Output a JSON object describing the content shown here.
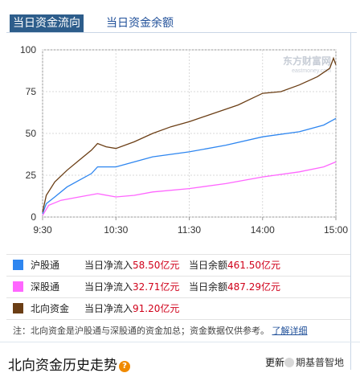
{
  "tabs": [
    {
      "label": "当日资金流向",
      "active": true
    },
    {
      "label": "当日资金余额",
      "active": false
    }
  ],
  "chart_data": {
    "type": "line",
    "ylim": [
      0,
      100
    ],
    "yticks": [
      0,
      25,
      50,
      75,
      100
    ],
    "xticks": [
      "9:30",
      "10:30",
      "11:30",
      "14:00",
      "15:00"
    ],
    "grid": true,
    "watermark_text": "东方财富网",
    "watermark_subtext": "eastmoney.com",
    "series": [
      {
        "name": "北向资金",
        "color": "#6b3e15",
        "values": [
          {
            "t": "9:30",
            "v": 3
          },
          {
            "t": "9:33",
            "v": 13
          },
          {
            "t": "9:40",
            "v": 21
          },
          {
            "t": "9:50",
            "v": 28
          },
          {
            "t": "10:00",
            "v": 34
          },
          {
            "t": "10:10",
            "v": 40
          },
          {
            "t": "10:15",
            "v": 44
          },
          {
            "t": "10:22",
            "v": 42
          },
          {
            "t": "10:30",
            "v": 41
          },
          {
            "t": "10:45",
            "v": 45
          },
          {
            "t": "11:00",
            "v": 50
          },
          {
            "t": "11:15",
            "v": 54
          },
          {
            "t": "11:30",
            "v": 57
          },
          {
            "t": "13:00",
            "v": 57
          },
          {
            "t": "13:20",
            "v": 62
          },
          {
            "t": "13:40",
            "v": 67
          },
          {
            "t": "14:00",
            "v": 74
          },
          {
            "t": "14:15",
            "v": 75
          },
          {
            "t": "14:30",
            "v": 79
          },
          {
            "t": "14:45",
            "v": 84
          },
          {
            "t": "14:55",
            "v": 89
          },
          {
            "t": "14:58",
            "v": 95
          },
          {
            "t": "15:00",
            "v": 91
          }
        ]
      },
      {
        "name": "沪股通",
        "color": "#2e86f0",
        "values": [
          {
            "t": "9:30",
            "v": 2
          },
          {
            "t": "9:33",
            "v": 8
          },
          {
            "t": "9:40",
            "v": 12
          },
          {
            "t": "9:50",
            "v": 18
          },
          {
            "t": "10:00",
            "v": 22
          },
          {
            "t": "10:10",
            "v": 26
          },
          {
            "t": "10:15",
            "v": 30
          },
          {
            "t": "10:30",
            "v": 30
          },
          {
            "t": "10:45",
            "v": 33
          },
          {
            "t": "11:00",
            "v": 36
          },
          {
            "t": "11:30",
            "v": 39
          },
          {
            "t": "13:00",
            "v": 39
          },
          {
            "t": "13:30",
            "v": 43
          },
          {
            "t": "14:00",
            "v": 48
          },
          {
            "t": "14:30",
            "v": 51
          },
          {
            "t": "14:50",
            "v": 55
          },
          {
            "t": "15:00",
            "v": 59
          }
        ]
      },
      {
        "name": "深股通",
        "color": "#ff66ff",
        "values": [
          {
            "t": "9:30",
            "v": 1
          },
          {
            "t": "9:35",
            "v": 7
          },
          {
            "t": "9:45",
            "v": 10
          },
          {
            "t": "10:00",
            "v": 12
          },
          {
            "t": "10:15",
            "v": 14
          },
          {
            "t": "10:30",
            "v": 12
          },
          {
            "t": "10:45",
            "v": 13
          },
          {
            "t": "11:00",
            "v": 15
          },
          {
            "t": "11:30",
            "v": 17
          },
          {
            "t": "13:00",
            "v": 17
          },
          {
            "t": "13:30",
            "v": 20
          },
          {
            "t": "14:00",
            "v": 24
          },
          {
            "t": "14:30",
            "v": 27
          },
          {
            "t": "14:50",
            "v": 30
          },
          {
            "t": "15:00",
            "v": 33
          }
        ]
      }
    ]
  },
  "legend": [
    {
      "name": "沪股通",
      "color": "#2e86f0",
      "inflow_label": "当日净流入",
      "inflow_value": "58.50",
      "inflow_unit": "亿元",
      "balance_label": "当日余额",
      "balance_value": "461.50",
      "balance_unit": "亿元"
    },
    {
      "name": "深股通",
      "color": "#ff66ff",
      "inflow_label": "当日净流入",
      "inflow_value": "32.71",
      "inflow_unit": "亿元",
      "balance_label": "当日余额",
      "balance_value": "487.29",
      "balance_unit": "亿元"
    },
    {
      "name": "北向资金",
      "color": "#6b3e15",
      "inflow_label": "当日净流入",
      "inflow_value": "91.20",
      "inflow_unit": "亿元",
      "balance_label": "",
      "balance_value": "",
      "balance_unit": ""
    }
  ],
  "note": {
    "text": "注：北向资金是沪股通与深股通的资金加总；资金数据仅供参考。",
    "link": "了解详细"
  },
  "section": {
    "title": "北向资金历史走势",
    "more": "更新",
    "watermark": "期基普智地"
  }
}
